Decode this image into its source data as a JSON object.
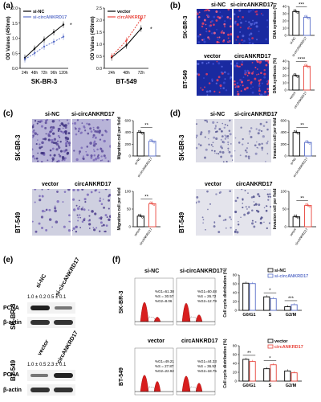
{
  "panels": {
    "a": "(a)",
    "b": "(b)",
    "c": "(c)",
    "d": "(d)",
    "e": "(e)",
    "f": "(f)"
  },
  "groups": {
    "si_nc": "si-NC",
    "si_circ": "si-circANKRD17",
    "vector": "vector",
    "circ": "circANKRD17"
  },
  "cells": {
    "skbr3": "SK-BR-3",
    "bt549": "BT-549"
  },
  "colors": {
    "black": "#000000",
    "red": "#e8453c",
    "blue": "#5b70c9",
    "dapi": "#1a2aa0"
  },
  "chart_data": [
    {
      "type": "line",
      "panel": "a-left",
      "xlabel": "SK-BR-3",
      "ylabel": "OD Values (450nm)",
      "ylim": [
        0,
        2.0
      ],
      "yticks": [
        "0.0",
        "0.5",
        "1.0",
        "1.5",
        "2.0"
      ],
      "categories": [
        "24h",
        "48h",
        "72h",
        "96h",
        "120h"
      ],
      "series": [
        {
          "name": "si-NC",
          "color": "#000000",
          "values": [
            0.35,
            0.65,
            0.95,
            1.2,
            1.45
          ]
        },
        {
          "name": "si-circANKRD17",
          "color": "#5b70c9",
          "values": [
            0.3,
            0.5,
            0.72,
            0.88,
            1.05
          ]
        }
      ],
      "annotation": "*"
    },
    {
      "type": "line",
      "panel": "a-right",
      "xlabel": "BT-549",
      "ylabel": "OD Values (450nm)",
      "ylim": [
        0,
        2.5
      ],
      "yticks": [
        "0.0",
        "0.5",
        "1.0",
        "1.5",
        "2.0",
        "2.5"
      ],
      "categories": [
        "24h",
        "48h",
        "72h"
      ],
      "series": [
        {
          "name": "vector",
          "color": "#000000",
          "values": [
            0.45,
            0.95,
            1.65
          ]
        },
        {
          "name": "circANKRD17",
          "color": "#e8453c",
          "values": [
            0.5,
            1.15,
            2.05
          ]
        }
      ],
      "annotation": "*"
    },
    {
      "type": "bar",
      "panel": "b-top",
      "ylabel": "DNA synthesis (%)",
      "ylim": [
        0,
        40
      ],
      "yticks": [
        "0",
        "10",
        "20",
        "30",
        "40"
      ],
      "categories": [
        "si-NC",
        "si-circANKRD17"
      ],
      "values": [
        33,
        25
      ],
      "colors": [
        "#000000",
        "#5b70c9"
      ],
      "sig": "***"
    },
    {
      "type": "bar",
      "panel": "b-bottom",
      "ylabel": "DNA synthesis (%)",
      "ylim": [
        0,
        40
      ],
      "yticks": [
        "0",
        "10",
        "20",
        "30",
        "40"
      ],
      "categories": [
        "vector",
        "circANKRD17"
      ],
      "values": [
        20,
        33
      ],
      "colors": [
        "#000000",
        "#e8453c"
      ],
      "sig": "****"
    },
    {
      "type": "bar",
      "panel": "c-top",
      "ylabel": "Migration cell per field",
      "ylim": [
        0,
        600
      ],
      "yticks": [
        "0",
        "200",
        "400",
        "600"
      ],
      "categories": [
        "si-NC",
        "si-circANKRD17"
      ],
      "values": [
        400,
        250
      ],
      "colors": [
        "#000000",
        "#5b70c9"
      ],
      "sig": "**"
    },
    {
      "type": "bar",
      "panel": "c-bottom",
      "ylabel": "Migration cell per field",
      "ylim": [
        0,
        100
      ],
      "yticks": [
        "0",
        "50",
        "100"
      ],
      "categories": [
        "vector",
        "circANKRD17"
      ],
      "values": [
        30,
        65
      ],
      "colors": [
        "#000000",
        "#e8453c"
      ],
      "sig": "**"
    },
    {
      "type": "bar",
      "panel": "d-top",
      "ylabel": "Invasion cell per field",
      "ylim": [
        0,
        600
      ],
      "yticks": [
        "0",
        "200",
        "400",
        "600"
      ],
      "categories": [
        "si-NC",
        "si-circANKRD17"
      ],
      "values": [
        400,
        230
      ],
      "colors": [
        "#000000",
        "#5b70c9"
      ],
      "sig": "**"
    },
    {
      "type": "bar",
      "panel": "d-bottom",
      "ylabel": "Invasion cell per field",
      "ylim": [
        0,
        100
      ],
      "yticks": [
        "0",
        "50",
        "100"
      ],
      "categories": [
        "vector",
        "circANKRD17"
      ],
      "values": [
        28,
        60
      ],
      "colors": [
        "#000000",
        "#e8453c"
      ],
      "sig": "**"
    },
    {
      "type": "bar",
      "panel": "f-top",
      "ylabel": "Cell cycle distribution (%)",
      "ylim": [
        0,
        80
      ],
      "yticks": [
        "0",
        "20",
        "40",
        "60",
        "80"
      ],
      "categories": [
        "G0/G1",
        "S",
        "G2/M"
      ],
      "series": [
        {
          "name": "si-NC",
          "color": "#000000",
          "values": [
            61.4,
            30.6,
            8.1
          ]
        },
        {
          "name": "si-circANKRD17",
          "color": "#5b70c9",
          "values": [
            60.5,
            26.7,
            12.8
          ]
        }
      ],
      "sig": [
        "",
        "*",
        "***"
      ],
      "legend": "top-right"
    },
    {
      "type": "bar",
      "panel": "f-bottom",
      "ylabel": "Cell cycle distribution (%)",
      "ylim": [
        0,
        80
      ],
      "yticks": [
        "0",
        "20",
        "40",
        "60",
        "80"
      ],
      "categories": [
        "G0/G1",
        "S",
        "G2/M"
      ],
      "series": [
        {
          "name": "vector",
          "color": "#000000",
          "values": [
            49.2,
            27.9,
            22.9
          ]
        },
        {
          "name": "circANKRD17",
          "color": "#e8453c",
          "values": [
            44.3,
            36.9,
            18.8
          ]
        }
      ],
      "sig": [
        "**",
        "*",
        ""
      ],
      "legend": "top-right"
    }
  ],
  "western": {
    "top": {
      "lanes": [
        "si-NC",
        "si-circANKRD17"
      ],
      "quant": "1.0 ± 0.2   0.5 ± 0.1",
      "rows": [
        "PCNA",
        "β-actin"
      ],
      "cell": "SK-BR-3"
    },
    "bottom": {
      "lanes": [
        "vector",
        "circANKRD17"
      ],
      "quant": "1.0 ± 0.5   2.3 ± 0.1",
      "rows": [
        "PCNA",
        "β-actin"
      ],
      "cell": "BT-549"
    }
  },
  "flow": {
    "top": {
      "si_nc": [
        "%G1=61.38",
        "%S = 30.57",
        "%G2=8.06"
      ],
      "si_circ": [
        "%G1=60.48",
        "%S = 26.72",
        "%G2=12.79"
      ]
    },
    "bottom": {
      "vector": [
        "%G1=49.21",
        "%S = 27.87",
        "%G2=22.92"
      ],
      "circ": [
        "%G1=44.33",
        "%S = 36.92",
        "%G2=18.75"
      ]
    }
  }
}
